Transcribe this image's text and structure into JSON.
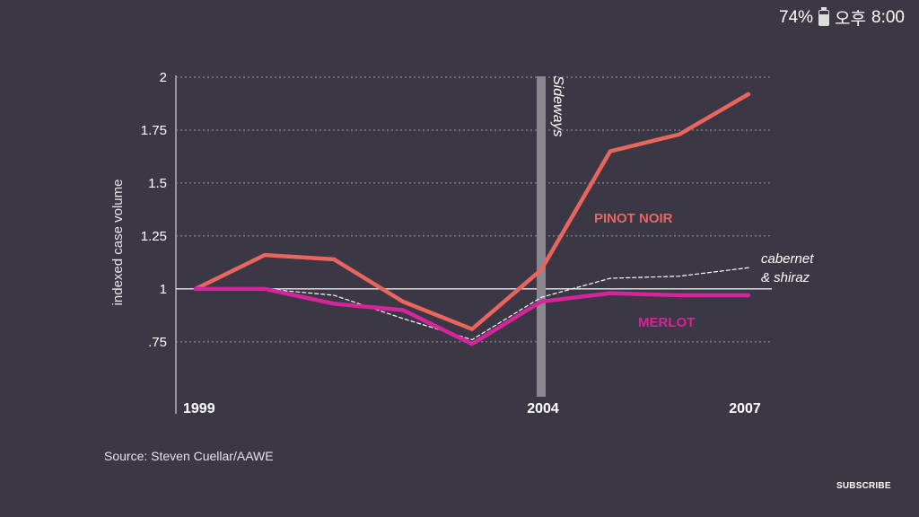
{
  "status_bar": {
    "battery": "74%",
    "time_period": "오후",
    "time": "8:00"
  },
  "chart_data": {
    "type": "line",
    "ylabel": "indexed case volume",
    "x": [
      1999,
      2000,
      2001,
      2002,
      2003,
      2004,
      2005,
      2006,
      2007
    ],
    "x_tick_labels": [
      "1999",
      "2004",
      "2007"
    ],
    "y_tick_labels": [
      "2",
      "1.75",
      "1.5",
      "1.25",
      "1",
      ".75"
    ],
    "y_tick_values": [
      2,
      1.75,
      1.5,
      1.25,
      1,
      0.75
    ],
    "ylim": [
      0.55,
      2.0
    ],
    "grid": "dotted-horizontal",
    "annotation": {
      "x": 2004,
      "label": "Sideways"
    },
    "series": [
      {
        "name": "PINOT NOIR",
        "color": "#e8665e",
        "style": "solid-thick",
        "values": [
          1.0,
          1.16,
          1.14,
          0.94,
          0.81,
          1.09,
          1.65,
          1.73,
          1.92
        ]
      },
      {
        "name": "cabernet & shiraz",
        "color": "#ffffff",
        "style": "dashed",
        "values": [
          1.0,
          1.0,
          0.97,
          0.86,
          0.76,
          0.96,
          1.05,
          1.06,
          1.1
        ]
      },
      {
        "name": "MERLOT",
        "color": "#d6249a",
        "style": "solid-thick",
        "values": [
          1.0,
          1.0,
          0.93,
          0.9,
          0.74,
          0.94,
          0.98,
          0.97,
          0.97
        ]
      }
    ]
  },
  "source": "Source: Steven Cuellar/AAWE",
  "subscribe_label": "SUBSCRIBE"
}
